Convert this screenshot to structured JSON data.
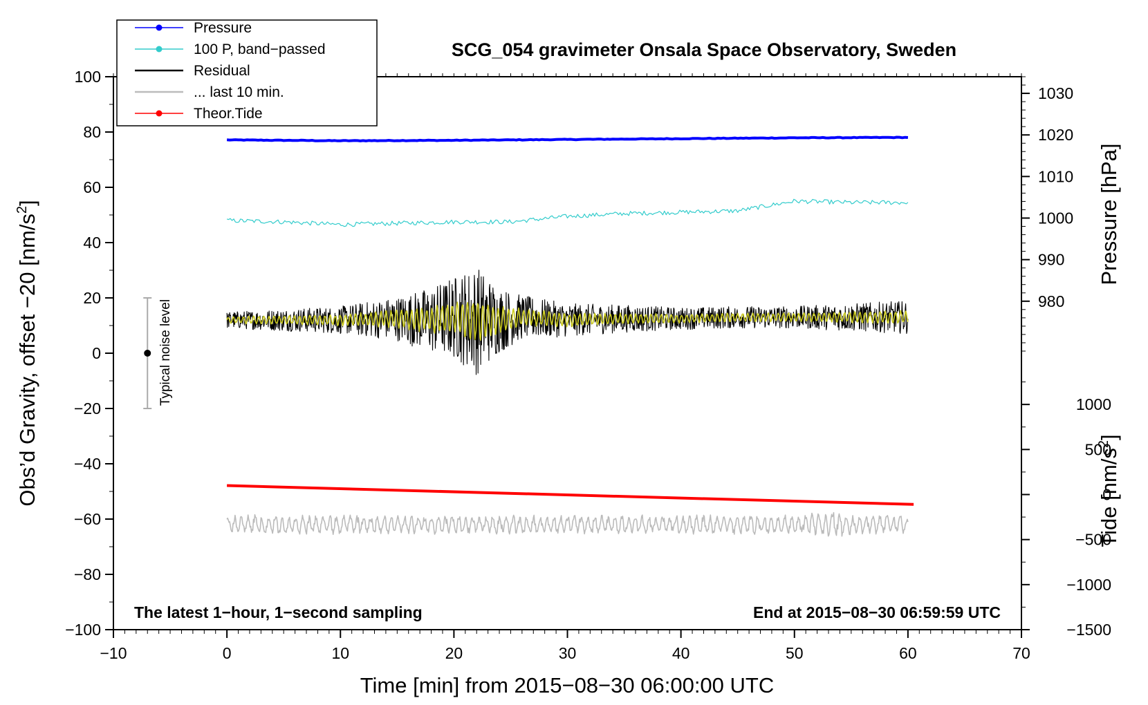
{
  "chart_data": {
    "type": "line",
    "title": "SCG_054 gravimeter Onsala Space Observatory, Sweden",
    "xlabel": "Time [min] from 2015−08−30 06:00:00 UTC",
    "ylabel_left_main": "Obs’d Gravity, offset −20 [nm/s",
    "ylabel_left_sup": "2",
    "ylabel_left_end": "]",
    "ylabel_right_pressure": "Pressure [hPa]",
    "ylabel_right_tide_main": "Tide [nm/s",
    "ylabel_right_tide_sup": "2",
    "ylabel_right_tide_end": "]",
    "xlim": [
      -10,
      70
    ],
    "ylim": [
      -100,
      100
    ],
    "pressure_lim": [
      966.0,
      1034.0
    ],
    "tide_lim": [
      -1500,
      1500
    ],
    "x_ticks": [
      -10,
      0,
      10,
      20,
      30,
      40,
      50,
      60,
      70
    ],
    "x_tick_labels": [
      "−10",
      "0",
      "10",
      "20",
      "30",
      "40",
      "50",
      "60",
      "70"
    ],
    "y_ticks": [
      100,
      80,
      60,
      40,
      20,
      0,
      -20,
      -40,
      -60,
      -80,
      -100
    ],
    "y_tick_labels": [
      "100",
      "80",
      "60",
      "40",
      "20",
      "0",
      "−20",
      "−40",
      "−60",
      "−80",
      "−100"
    ],
    "pressure_ticks": [
      1030,
      1020,
      1010,
      1000,
      990,
      980
    ],
    "pressure_tick_labels": [
      "1030",
      "1020",
      "1010",
      "1000",
      "990",
      "980"
    ],
    "tide_ticks": [
      1000,
      500,
      0,
      -500,
      -1000,
      -1500
    ],
    "tide_tick_labels": [
      "1000",
      "500",
      "0",
      "−500",
      "−1000",
      "−1500"
    ],
    "note_left": "The latest 1−hour, 1−second sampling",
    "note_right": "End at 2015−08−30 06:59:59 UTC",
    "noise_bar": {
      "label": "Typical noise level",
      "x": -7,
      "center": 0,
      "low": -20,
      "high": 20
    },
    "legend": {
      "placement": "top-left",
      "entries": [
        {
          "label": "Pressure",
          "color": "#0000ff",
          "marker": true
        },
        {
          "label": "100 P, band−passed",
          "color": "#33cccc",
          "marker": true
        },
        {
          "label": "Residual",
          "color": "#000000",
          "marker": false
        },
        {
          "label": "... last 10 min.",
          "color": "#bbbbbb",
          "marker": false
        },
        {
          "label": "Theor.Tide",
          "color": "#ff0000",
          "marker": true
        }
      ]
    },
    "series": [
      {
        "name": "Pressure",
        "axis": "pressure",
        "color": "#0000ff",
        "x": [
          0,
          10,
          20,
          30,
          40,
          50,
          60
        ],
        "values": [
          1018.8,
          1018.6,
          1018.7,
          1018.9,
          1019.1,
          1019.3,
          1019.4
        ]
      },
      {
        "name": "100 P, band−passed",
        "axis": "gravity",
        "color": "#33cccc",
        "x": [
          0,
          5,
          10,
          15,
          20,
          25,
          30,
          35,
          40,
          45,
          50,
          55,
          60
        ],
        "values": [
          48,
          47.5,
          46.5,
          47,
          47.5,
          47.5,
          49.5,
          50.5,
          51,
          51.5,
          55,
          54.5,
          54.5
        ]
      },
      {
        "name": "Residual",
        "axis": "gravity",
        "color": "#000000",
        "x": [
          0,
          5,
          10,
          15,
          18,
          20,
          22,
          24,
          26,
          30,
          35,
          40,
          45,
          50,
          55,
          60
        ],
        "values": [
          12,
          12,
          12,
          12.5,
          12,
          13,
          12,
          12,
          13,
          12,
          12.5,
          12.5,
          13,
          13,
          13,
          13
        ],
        "amplitude": [
          3,
          4,
          5,
          8,
          12,
          15,
          20,
          12,
          8,
          6,
          5,
          4,
          4,
          4,
          5,
          6
        ]
      },
      {
        "name": "... last 10 min.",
        "axis": "gravity",
        "color": "#bbbbbb",
        "x": [
          0,
          10,
          20,
          30,
          40,
          50,
          53,
          55,
          60
        ],
        "values": [
          -62,
          -62,
          -62,
          -62,
          -62,
          -62,
          -62,
          -62,
          -62
        ],
        "amplitude": [
          3,
          3,
          3,
          3,
          3,
          3,
          5,
          3,
          3
        ]
      },
      {
        "name": "Theor.Tide",
        "axis": "tide",
        "color": "#ff0000",
        "x": [
          0,
          60.5
        ],
        "values": [
          100,
          -110
        ]
      }
    ]
  }
}
